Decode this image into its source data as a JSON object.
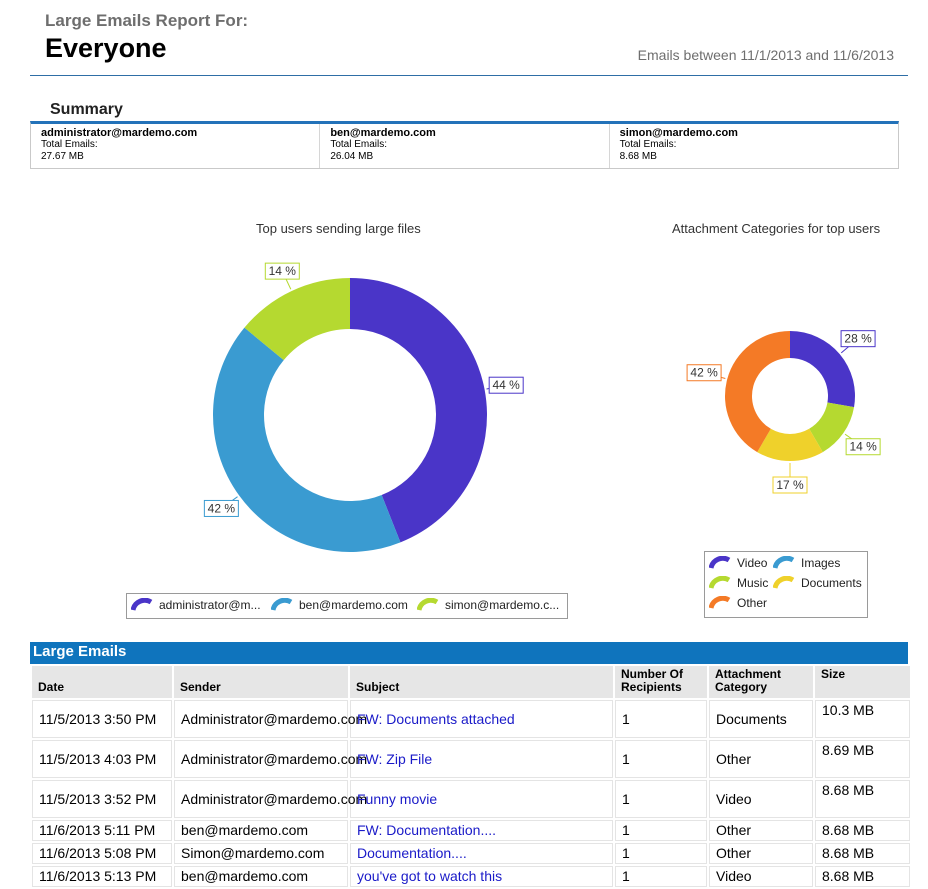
{
  "header": {
    "report_label": "Large Emails Report For:",
    "report_target": "Everyone",
    "date_range": "Emails between 11/1/2013 and 11/6/2013"
  },
  "summary": {
    "title": "Summary",
    "users": [
      {
        "email": "administrator@mardemo.com",
        "label": "Total Emails:",
        "total": "27.67 MB"
      },
      {
        "email": "ben@mardemo.com",
        "label": "Total Emails:",
        "total": "26.04 MB"
      },
      {
        "email": "simon@mardemo.com",
        "label": "Total Emails:",
        "total": "8.68 MB"
      }
    ]
  },
  "colors": {
    "purple": "#4a35c8",
    "blue": "#3a9bd1",
    "green": "#b5d930",
    "yellow": "#efd12b",
    "orange": "#f47a26",
    "header_blue": "#0f74bd"
  },
  "chart_data": [
    {
      "type": "pie",
      "title": "Top users sending large files",
      "categories": [
        "administrator@m...",
        "ben@mardemo.com",
        "simon@mardemo.c..."
      ],
      "values": [
        44,
        42,
        14
      ],
      "labels": [
        "44 %",
        "42 %",
        "14 %"
      ],
      "colors": [
        "#4a35c8",
        "#3a9bd1",
        "#b5d930"
      ],
      "legend": "bottom"
    },
    {
      "type": "pie",
      "title": "Attachment Categories for top users",
      "categories": [
        "Video",
        "Images",
        "Music",
        "Documents",
        "Other"
      ],
      "values": [
        28,
        0,
        14,
        17,
        42
      ],
      "labels": [
        "28 %",
        "",
        "14 %",
        "17 %",
        "42 %"
      ],
      "colors": [
        "#4a35c8",
        "#3a9bd1",
        "#b5d930",
        "#efd12b",
        "#f47a26"
      ],
      "legend": "bottom"
    }
  ],
  "table": {
    "title": "Large Emails",
    "columns": [
      "Date",
      "Sender",
      "Subject",
      "Number Of Recipients",
      "Attachment Category",
      "Size"
    ],
    "rows": [
      [
        "11/5/2013 3:50 PM",
        "Administrator@mardemo.com",
        "FW: Documents attached",
        "1",
        "Documents",
        "10.3 MB"
      ],
      [
        "11/5/2013 4:03 PM",
        "Administrator@mardemo.com",
        "FW: Zip File",
        "1",
        "Other",
        "8.69 MB"
      ],
      [
        "11/5/2013 3:52 PM",
        "Administrator@mardemo.com",
        "Funny movie",
        "1",
        "Video",
        "8.68 MB"
      ],
      [
        "11/6/2013 5:11 PM",
        "ben@mardemo.com",
        "FW: Documentation....",
        "1",
        "Other",
        "8.68 MB"
      ],
      [
        "11/6/2013 5:08 PM",
        "Simon@mardemo.com",
        "Documentation....",
        "1",
        "Other",
        "8.68 MB"
      ],
      [
        "11/6/2013 5:13 PM",
        "ben@mardemo.com",
        "you've got to watch this",
        "1",
        "Video",
        "8.68 MB"
      ]
    ]
  }
}
